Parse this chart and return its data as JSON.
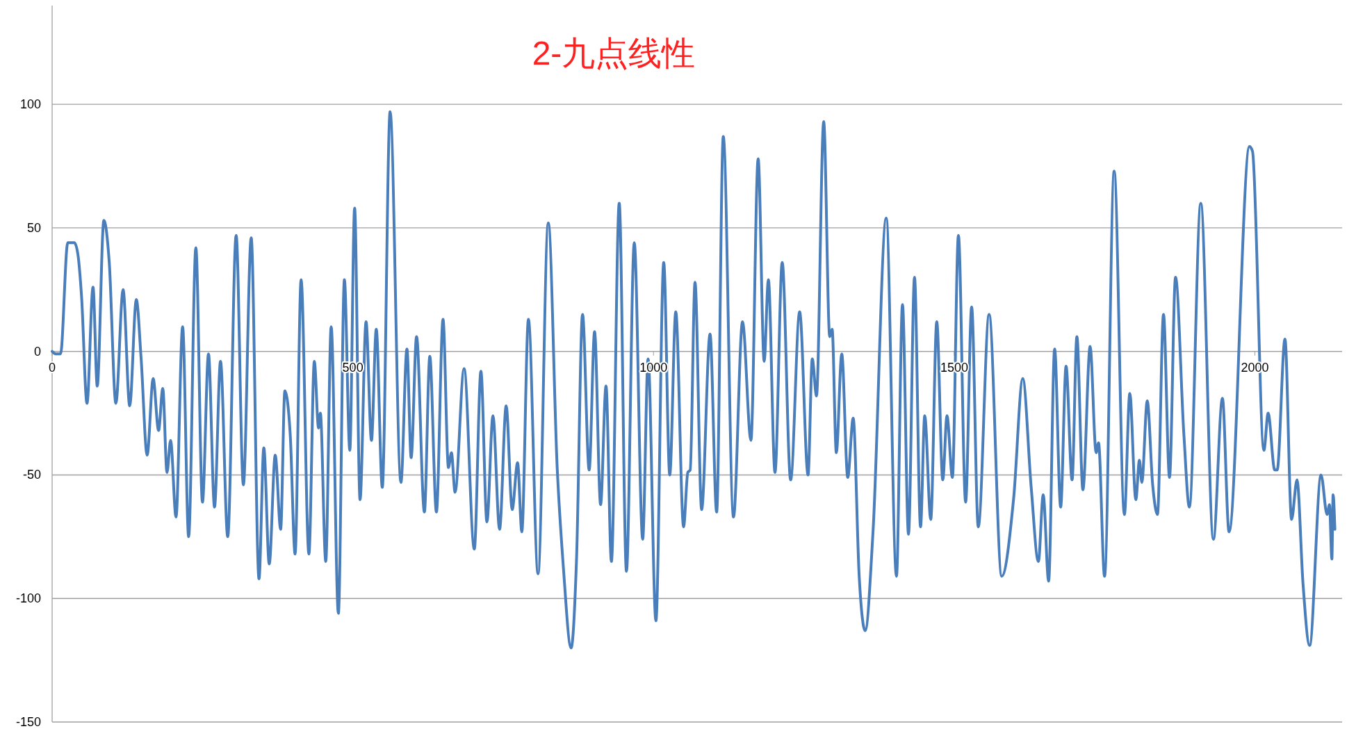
{
  "chart_data": {
    "type": "line",
    "title": "2-九点线性",
    "grid": "y",
    "xlim": [
      0,
      2145
    ],
    "ylim": [
      -150,
      140
    ],
    "xticks": [
      0,
      500,
      1000,
      1500,
      2000
    ],
    "yticks": [
      -150,
      -100,
      -50,
      0,
      50,
      100
    ],
    "series": [
      {
        "color": "#4a7ebb",
        "x": [
          0,
          6,
          14,
          26,
          37,
          43,
          49,
          58,
          68,
          75,
          86,
          95,
          106,
          118,
          129,
          140,
          148,
          158,
          168,
          177,
          184,
          191,
          197,
          206,
          217,
          227,
          239,
          250,
          260,
          270,
          280,
          292,
          306,
          318,
          331,
          344,
          352,
          361,
          371,
          380,
          387,
          396,
          404,
          414,
          427,
          436,
          443,
          446,
          455,
          464,
          476,
          486,
          495,
          503,
          512,
          522,
          531,
          539,
          549,
          562,
          580,
          590,
          597,
          606,
          619,
          628,
          639,
          650,
          659,
          664,
          670,
          685,
          702,
          713,
          723,
          733,
          744,
          755,
          765,
          774,
          781,
          792,
          808,
          825,
          840,
          850,
          863,
          872,
          882,
          893,
          902,
          912,
          921,
          930,
          943,
          955,
          968,
          982,
          991,
          1004,
          1017,
          1027,
          1037,
          1050,
          1057,
          1061,
          1069,
          1080,
          1094,
          1105,
          1116,
          1133,
          1148,
          1162,
          1174,
          1184,
          1191,
          1202,
          1214,
          1228,
          1243,
          1257,
          1264,
          1271,
          1283,
          1293,
          1297,
          1304,
          1313,
          1323,
          1332,
          1342,
          1352,
          1365,
          1387,
          1404,
          1414,
          1424,
          1434,
          1444,
          1451,
          1461,
          1471,
          1481,
          1488,
          1497,
          1507,
          1519,
          1529,
          1540,
          1558,
          1579,
          1599,
          1614,
          1628,
          1640,
          1648,
          1657,
          1667,
          1677,
          1686,
          1696,
          1704,
          1714,
          1726,
          1736,
          1740,
          1750,
          1766,
          1783,
          1792,
          1802,
          1808,
          1812,
          1821,
          1830,
          1838,
          1848,
          1858,
          1868,
          1882,
          1891,
          1910,
          1931,
          1946,
          1957,
          1991,
          1996,
          2015,
          2022,
          2033,
          2037,
          2050,
          2061,
          2070,
          2080,
          2091,
          2110,
          2120,
          2124,
          2128,
          2130,
          2133
        ],
        "values": [
          0,
          -1,
          -1,
          44,
          44,
          39,
          22,
          -21,
          26,
          -14,
          53,
          36,
          -21,
          25,
          -22,
          21,
          -3,
          -42,
          -11,
          -32,
          -15,
          -49,
          -36,
          -67,
          10,
          -75,
          42,
          -61,
          -1,
          -63,
          -4,
          -75,
          47,
          -54,
          46,
          -92,
          -39,
          -86,
          -42,
          -72,
          -16,
          -34,
          -82,
          29,
          -82,
          -4,
          -31,
          -25,
          -85,
          10,
          -106,
          29,
          -40,
          58,
          -60,
          12,
          -36,
          9,
          -55,
          97,
          -53,
          1,
          -43,
          6,
          -65,
          -2,
          -65,
          13,
          -47,
          -41,
          -57,
          -7,
          -80,
          -8,
          -69,
          -26,
          -72,
          -22,
          -64,
          -45,
          -73,
          13,
          -90,
          52,
          -48,
          -87,
          -120,
          -84,
          15,
          -48,
          8,
          -62,
          -14,
          -85,
          60,
          -89,
          44,
          -76,
          -3,
          -109,
          36,
          -50,
          16,
          -71,
          -49,
          -48,
          28,
          -64,
          7,
          -65,
          87,
          -67,
          12,
          -36,
          78,
          -4,
          29,
          -49,
          36,
          -52,
          16,
          -50,
          -3,
          -18,
          93,
          6,
          9,
          -41,
          -1,
          -51,
          -27,
          -91,
          -113,
          -73,
          54,
          -91,
          19,
          -74,
          30,
          -71,
          -26,
          -68,
          12,
          -52,
          -26,
          -51,
          47,
          -61,
          18,
          -71,
          15,
          -91,
          -59,
          -11,
          -55,
          -85,
          -58,
          -93,
          1,
          -63,
          -6,
          -52,
          6,
          -56,
          2,
          -41,
          -37,
          -91,
          73,
          -66,
          -17,
          -60,
          -44,
          -53,
          -20,
          -54,
          -66,
          15,
          -51,
          30,
          -34,
          -63,
          60,
          -76,
          -19,
          -73,
          83,
          81,
          -40,
          -25,
          -48,
          -48,
          5,
          -68,
          -52,
          -94,
          -119,
          -50,
          -66,
          -62,
          -84,
          -58,
          -72
        ]
      }
    ]
  }
}
